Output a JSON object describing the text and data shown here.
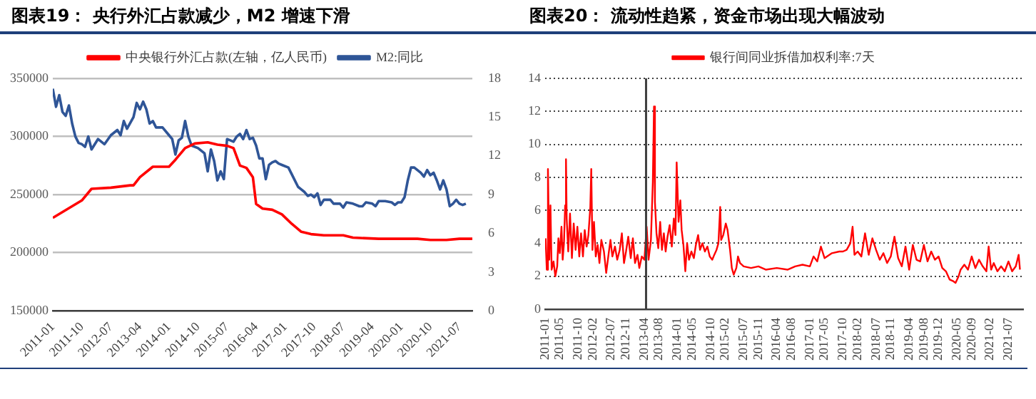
{
  "chart_data": [
    {
      "type": "line",
      "title": "图表19： 央行外汇占款减少，M2 增速下滑",
      "legend": "top",
      "grid": "y",
      "marker": "none",
      "line_style": "solid",
      "xlim": [
        "2011-01",
        "2021-11"
      ],
      "xticks": [
        "2011-01",
        "2011-10",
        "2012-07",
        "2013-04",
        "2014-01",
        "2014-10",
        "2015-07",
        "2016-04",
        "2017-01",
        "2017-10",
        "2018-07",
        "2019-04",
        "2020-01",
        "2020-10",
        "2021-07"
      ],
      "ylim": [
        150000,
        350000
      ],
      "yticks": [
        150000,
        200000,
        250000,
        300000,
        350000
      ],
      "y2lim": [
        0,
        18
      ],
      "y2ticks": [
        0,
        3,
        6,
        9,
        12,
        15,
        18
      ],
      "series": [
        {
          "name": "中央银行外汇占款(左轴，亿人民币)",
          "color": "#ff0000",
          "x": [
            "2011-01",
            "2011-10",
            "2012-01",
            "2012-07",
            "2013-01",
            "2013-02",
            "2013-04",
            "2013-08",
            "2014-01",
            "2014-03",
            "2014-06",
            "2014-09",
            "2015-01",
            "2015-04",
            "2015-07",
            "2015-09",
            "2015-11",
            "2016-01",
            "2016-03",
            "2016-04",
            "2016-06",
            "2016-09",
            "2016-12",
            "2017-03",
            "2017-06",
            "2017-09",
            "2018-01",
            "2018-07",
            "2018-10",
            "2019-06",
            "2020-06",
            "2020-10",
            "2021-03",
            "2021-07",
            "2021-11"
          ],
          "values": [
            230000,
            245000,
            255000,
            256000,
            258000,
            258000,
            265000,
            274000,
            274000,
            280000,
            290000,
            294000,
            295000,
            293000,
            292000,
            290000,
            275000,
            273000,
            265000,
            242000,
            238000,
            237000,
            233000,
            225000,
            218000,
            216000,
            215000,
            215000,
            213000,
            212000,
            212000,
            211000,
            211000,
            212000,
            212000
          ]
        },
        {
          "name": "M2:同比",
          "color": "#2f5597",
          "axis": "y2",
          "x": [
            "2011-01",
            "2011-02",
            "2011-03",
            "2011-04",
            "2011-05",
            "2011-06",
            "2011-07",
            "2011-08",
            "2011-09",
            "2011-10",
            "2011-11",
            "2011-12",
            "2012-01",
            "2012-03",
            "2012-05",
            "2012-07",
            "2012-09",
            "2012-10",
            "2012-11",
            "2012-12",
            "2013-02",
            "2013-03",
            "2013-04",
            "2013-05",
            "2013-06",
            "2013-07",
            "2013-08",
            "2013-09",
            "2013-11",
            "2014-01",
            "2014-02",
            "2014-03",
            "2014-04",
            "2014-05",
            "2014-06",
            "2014-07",
            "2014-08",
            "2014-10",
            "2014-12",
            "2015-01",
            "2015-02",
            "2015-03",
            "2015-04",
            "2015-05",
            "2015-06",
            "2015-07",
            "2015-09",
            "2015-10",
            "2015-11",
            "2015-12",
            "2016-01",
            "2016-02",
            "2016-03",
            "2016-04",
            "2016-05",
            "2016-06",
            "2016-07",
            "2016-08",
            "2016-09",
            "2016-10",
            "2016-11",
            "2016-12",
            "2017-02",
            "2017-03",
            "2017-05",
            "2017-06",
            "2017-07",
            "2017-08",
            "2017-09",
            "2017-10",
            "2017-11",
            "2017-12",
            "2018-01",
            "2018-03",
            "2018-04",
            "2018-06",
            "2018-07",
            "2018-08",
            "2018-10",
            "2018-12",
            "2019-01",
            "2019-02",
            "2019-04",
            "2019-05",
            "2019-06",
            "2019-08",
            "2019-10",
            "2019-11",
            "2019-12",
            "2020-01",
            "2020-02",
            "2020-03",
            "2020-04",
            "2020-05",
            "2020-07",
            "2020-08",
            "2020-09",
            "2020-10",
            "2020-11",
            "2020-12",
            "2021-01",
            "2021-02",
            "2021-03",
            "2021-04",
            "2021-05",
            "2021-06",
            "2021-07",
            "2021-08",
            "2021-09"
          ],
          "values": [
            17.2,
            15.8,
            16.7,
            15.4,
            15.1,
            15.9,
            14.5,
            13.5,
            13.0,
            12.9,
            12.7,
            13.5,
            12.5,
            13.3,
            12.9,
            13.6,
            14.0,
            13.6,
            14.7,
            14.1,
            15.0,
            16.1,
            15.6,
            16.2,
            15.6,
            14.5,
            14.7,
            14.2,
            14.2,
            13.6,
            13.3,
            12.1,
            13.2,
            13.4,
            14.7,
            13.5,
            12.8,
            12.6,
            12.2,
            10.8,
            12.5,
            11.6,
            10.1,
            10.8,
            10.2,
            13.3,
            13.1,
            13.5,
            13.7,
            13.3,
            14.0,
            13.3,
            13.4,
            12.8,
            11.8,
            11.8,
            10.2,
            11.3,
            11.5,
            11.6,
            11.4,
            11.3,
            11.1,
            10.6,
            9.6,
            9.4,
            9.2,
            8.9,
            9.0,
            8.8,
            9.1,
            8.2,
            8.6,
            8.6,
            8.3,
            8.3,
            8.0,
            8.4,
            8.3,
            8.1,
            8.1,
            8.4,
            8.3,
            8.1,
            8.5,
            8.5,
            8.4,
            8.2,
            8.4,
            8.4,
            8.8,
            10.1,
            11.1,
            11.1,
            10.7,
            10.4,
            10.9,
            10.5,
            10.7,
            10.1,
            9.4,
            10.1,
            9.4,
            8.1,
            8.3,
            8.6,
            8.3,
            8.2,
            8.3
          ]
        }
      ]
    },
    {
      "type": "line",
      "title": "图表20： 流动性趋紧，资金市场出现大幅波动",
      "legend": "top",
      "grid": "y",
      "marker": "none",
      "line_style": "solid",
      "xlim": [
        "2011-01",
        "2021-11"
      ],
      "xticks": [
        "2011-01",
        "2011-05",
        "2011-10",
        "2012-02",
        "2012-07",
        "2012-11",
        "2013-04",
        "2013-08",
        "2014-01",
        "2014-05",
        "2014-10",
        "2015-02",
        "2015-07",
        "2015-11",
        "2016-04",
        "2016-08",
        "2017-01",
        "2017-05",
        "2017-10",
        "2018-02",
        "2018-07",
        "2018-11",
        "2019-04",
        "2019-08",
        "2019-12",
        "2020-05",
        "2020-09",
        "2021-02",
        "2021-07"
      ],
      "ylim": [
        0,
        14
      ],
      "yticks": [
        0,
        2,
        4,
        6,
        8,
        10,
        12,
        14
      ],
      "ref_lines": [
        {
          "axis": "x",
          "value": "2013-04-15",
          "color": "#404040"
        }
      ],
      "series": [
        {
          "name": "银行间同业拆借加权利率:7天",
          "color": "#ff0000",
          "x": [
            "2011-01-05",
            "2011-01-15",
            "2011-01-25",
            "2011-02-05",
            "2011-02-15",
            "2011-02-25",
            "2011-03-10",
            "2011-03-25",
            "2011-04-10",
            "2011-04-20",
            "2011-05-01",
            "2011-05-15",
            "2011-05-25",
            "2011-06-05",
            "2011-06-15",
            "2011-06-22",
            "2011-06-28",
            "2011-07-10",
            "2011-07-25",
            "2011-08-10",
            "2011-08-25",
            "2011-09-10",
            "2011-09-25",
            "2011-10-10",
            "2011-10-25",
            "2011-11-10",
            "2011-11-25",
            "2011-12-10",
            "2011-12-25",
            "2012-01-10",
            "2012-01-18",
            "2012-01-28",
            "2012-02-10",
            "2012-02-25",
            "2012-03-10",
            "2012-03-25",
            "2012-04-10",
            "2012-05-01",
            "2012-05-20",
            "2012-06-10",
            "2012-06-25",
            "2012-07-10",
            "2012-08-01",
            "2012-08-20",
            "2012-09-10",
            "2012-09-28",
            "2012-10-15",
            "2012-11-01",
            "2012-11-20",
            "2012-12-10",
            "2012-12-28",
            "2013-01-15",
            "2013-02-05",
            "2013-02-20",
            "2013-03-10",
            "2013-04-01",
            "2013-04-20",
            "2013-05-05",
            "2013-05-25",
            "2013-06-10",
            "2013-06-20",
            "2013-06-28",
            "2013-07-10",
            "2013-07-25",
            "2013-08-10",
            "2013-08-25",
            "2013-09-10",
            "2013-09-25",
            "2013-10-10",
            "2013-10-28",
            "2013-11-15",
            "2013-12-01",
            "2013-12-15",
            "2013-12-25",
            "2014-01-10",
            "2014-01-25",
            "2014-02-05",
            "2014-02-20",
            "2014-03-05",
            "2014-03-20",
            "2014-04-05",
            "2014-04-25",
            "2014-05-15",
            "2014-06-01",
            "2014-06-20",
            "2014-07-05",
            "2014-07-25",
            "2014-08-15",
            "2014-09-05",
            "2014-09-25",
            "2014-10-15",
            "2014-11-01",
            "2014-11-20",
            "2014-12-05",
            "2014-12-20",
            "2014-12-28",
            "2015-01-15",
            "2015-02-05",
            "2015-02-20",
            "2015-03-10",
            "2015-03-25",
            "2015-04-10",
            "2015-05-01",
            "2015-05-15",
            "2015-06-01",
            "2015-07-01",
            "2015-09-01",
            "2015-11-01",
            "2016-01-01",
            "2016-04-01",
            "2016-07-01",
            "2016-09-01",
            "2016-11-01",
            "2017-01-01",
            "2017-02-01",
            "2017-03-01",
            "2017-04-01",
            "2017-05-01",
            "2017-07-01",
            "2017-09-01",
            "2017-10-01",
            "2017-11-01",
            "2017-12-01",
            "2017-12-20",
            "2018-01-05",
            "2018-02-01",
            "2018-03-01",
            "2018-04-01",
            "2018-05-01",
            "2018-06-01",
            "2018-07-01",
            "2018-08-01",
            "2018-09-01",
            "2018-10-01",
            "2018-11-01",
            "2018-12-01",
            "2019-01-01",
            "2019-02-01",
            "2019-03-01",
            "2019-04-01",
            "2019-05-01",
            "2019-06-01",
            "2019-07-01",
            "2019-08-01",
            "2019-09-01",
            "2019-10-01",
            "2019-11-01",
            "2019-12-01",
            "2020-01-01",
            "2020-02-01",
            "2020-03-01",
            "2020-04-01",
            "2020-04-20",
            "2020-05-15",
            "2020-06-01",
            "2020-07-01",
            "2020-08-01",
            "2020-09-01",
            "2020-10-01",
            "2020-11-01",
            "2020-12-01",
            "2021-01-01",
            "2021-01-20",
            "2021-02-10",
            "2021-03-01",
            "2021-04-01",
            "2021-05-01",
            "2021-06-01",
            "2021-07-01",
            "2021-08-01",
            "2021-09-01",
            "2021-09-25",
            "2021-10-05"
          ],
          "values": [
            4.3,
            2.4,
            8.5,
            3.0,
            6.3,
            2.4,
            2.9,
            2.0,
            2.6,
            4.3,
            3.4,
            5.0,
            3.0,
            4.0,
            6.3,
            9.1,
            5.5,
            3.5,
            5.8,
            3.1,
            5.2,
            3.6,
            5.0,
            3.2,
            4.6,
            3.2,
            4.8,
            3.8,
            4.5,
            6.2,
            8.5,
            3.6,
            5.3,
            3.2,
            3.9,
            2.8,
            4.2,
            3.5,
            2.2,
            3.4,
            4.2,
            3.2,
            3.8,
            3.0,
            3.6,
            4.6,
            2.8,
            3.5,
            4.4,
            3.1,
            4.3,
            2.8,
            3.3,
            2.5,
            3.2,
            3.0,
            5.0,
            3.0,
            4.2,
            7.7,
            12.3,
            6.5,
            4.6,
            3.7,
            5.3,
            3.6,
            4.6,
            3.5,
            4.4,
            5.1,
            3.8,
            5.5,
            4.5,
            8.9,
            5.3,
            6.6,
            4.8,
            3.9,
            2.3,
            4.0,
            3.0,
            3.5,
            3.1,
            3.9,
            4.5,
            3.6,
            4.0,
            3.5,
            3.8,
            3.2,
            3.0,
            3.3,
            3.6,
            4.0,
            6.2,
            4.2,
            4.5,
            5.2,
            4.8,
            3.6,
            2.5,
            2.1,
            2.5,
            3.2,
            2.8,
            2.6,
            2.5,
            2.6,
            2.4,
            2.5,
            2.4,
            2.6,
            2.7,
            2.6,
            3.2,
            2.9,
            3.8,
            3.1,
            3.4,
            3.5,
            3.5,
            3.6,
            4.0,
            5.0,
            3.3,
            3.5,
            3.2,
            4.6,
            3.3,
            4.3,
            3.6,
            3.0,
            3.4,
            2.8,
            3.2,
            4.4,
            3.1,
            2.6,
            3.8,
            2.4,
            3.9,
            3.0,
            2.9,
            3.9,
            2.9,
            3.5,
            3.0,
            3.2,
            2.5,
            2.3,
            1.8,
            1.7,
            1.6,
            2.0,
            2.4,
            2.7,
            2.4,
            3.2,
            2.5,
            3.0,
            2.6,
            2.3,
            3.8,
            2.4,
            2.8,
            2.3,
            2.6,
            2.3,
            2.9,
            2.3,
            2.6,
            3.3,
            2.4
          ]
        }
      ]
    }
  ]
}
